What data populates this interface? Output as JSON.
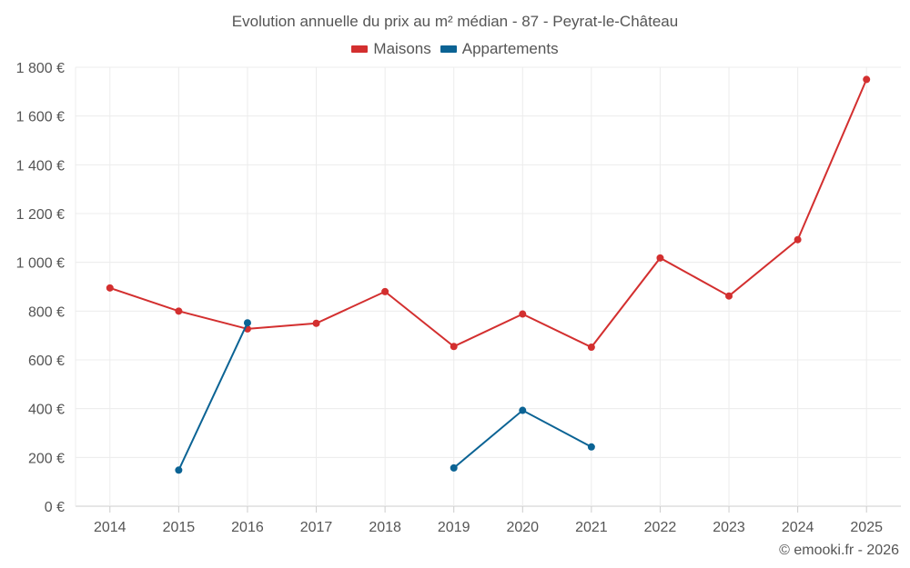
{
  "chart_data": {
    "type": "line",
    "title": "Evolution annuelle du prix au m² médian - 87 - Peyrat-le-Château",
    "categories": [
      "2014",
      "2015",
      "2016",
      "2017",
      "2018",
      "2019",
      "2020",
      "2021",
      "2022",
      "2023",
      "2024",
      "2025"
    ],
    "y_ticks": [
      0,
      200,
      400,
      600,
      800,
      1000,
      1200,
      1400,
      1600,
      1800
    ],
    "y_tick_labels": [
      "0 €",
      "200 €",
      "400 €",
      "600 €",
      "800 €",
      "1 000 €",
      "1 200 €",
      "1 400 €",
      "1 600 €",
      "1 800 €"
    ],
    "ylim": [
      0,
      1800
    ],
    "grid": true,
    "legend_position": "top-center",
    "series": [
      {
        "name": "Maisons",
        "color": "#d32f2f",
        "values": [
          895,
          800,
          727,
          750,
          880,
          655,
          788,
          652,
          1018,
          862,
          1093,
          1750
        ]
      },
      {
        "name": "Appartements",
        "color": "#0b6394",
        "values": [
          null,
          148,
          752,
          null,
          null,
          157,
          393,
          243,
          null,
          null,
          null,
          null
        ]
      }
    ],
    "credit": "© emooki.fr - 2026"
  }
}
